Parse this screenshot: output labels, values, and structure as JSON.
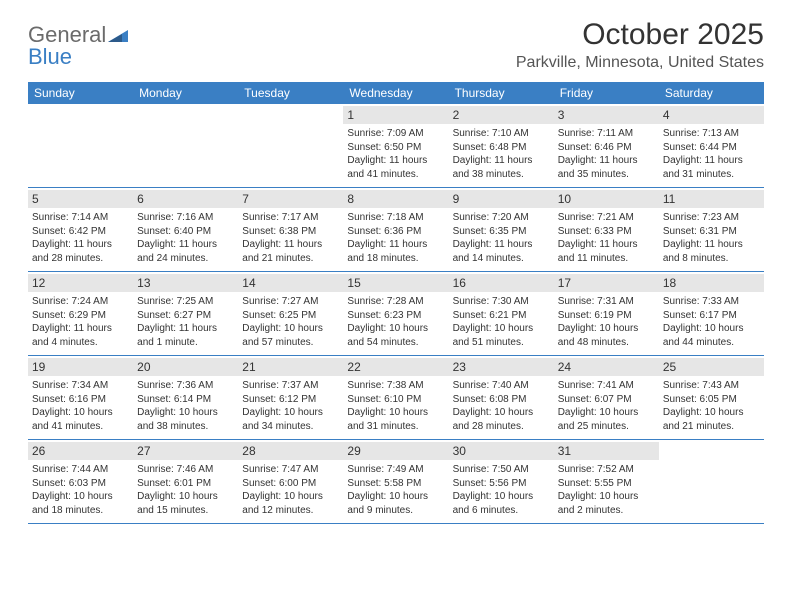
{
  "logo": {
    "line1": "General",
    "line2": "Blue",
    "shape_color": "#3a7fc4",
    "text_color": "#6b6b6b"
  },
  "title": "October 2025",
  "location": "Parkville, Minnesota, United States",
  "colors": {
    "header_bg": "#3a7fc4",
    "daynum_bg": "#e6e6e6",
    "border": "#3a7fc4"
  },
  "dow": [
    "Sunday",
    "Monday",
    "Tuesday",
    "Wednesday",
    "Thursday",
    "Friday",
    "Saturday"
  ],
  "weeks": [
    [
      {
        "n": "",
        "empty": true
      },
      {
        "n": "",
        "empty": true
      },
      {
        "n": "",
        "empty": true
      },
      {
        "n": "1",
        "sr": "7:09 AM",
        "ss": "6:50 PM",
        "dl": "11 hours and 41 minutes."
      },
      {
        "n": "2",
        "sr": "7:10 AM",
        "ss": "6:48 PM",
        "dl": "11 hours and 38 minutes."
      },
      {
        "n": "3",
        "sr": "7:11 AM",
        "ss": "6:46 PM",
        "dl": "11 hours and 35 minutes."
      },
      {
        "n": "4",
        "sr": "7:13 AM",
        "ss": "6:44 PM",
        "dl": "11 hours and 31 minutes."
      }
    ],
    [
      {
        "n": "5",
        "sr": "7:14 AM",
        "ss": "6:42 PM",
        "dl": "11 hours and 28 minutes."
      },
      {
        "n": "6",
        "sr": "7:16 AM",
        "ss": "6:40 PM",
        "dl": "11 hours and 24 minutes."
      },
      {
        "n": "7",
        "sr": "7:17 AM",
        "ss": "6:38 PM",
        "dl": "11 hours and 21 minutes."
      },
      {
        "n": "8",
        "sr": "7:18 AM",
        "ss": "6:36 PM",
        "dl": "11 hours and 18 minutes."
      },
      {
        "n": "9",
        "sr": "7:20 AM",
        "ss": "6:35 PM",
        "dl": "11 hours and 14 minutes."
      },
      {
        "n": "10",
        "sr": "7:21 AM",
        "ss": "6:33 PM",
        "dl": "11 hours and 11 minutes."
      },
      {
        "n": "11",
        "sr": "7:23 AM",
        "ss": "6:31 PM",
        "dl": "11 hours and 8 minutes."
      }
    ],
    [
      {
        "n": "12",
        "sr": "7:24 AM",
        "ss": "6:29 PM",
        "dl": "11 hours and 4 minutes."
      },
      {
        "n": "13",
        "sr": "7:25 AM",
        "ss": "6:27 PM",
        "dl": "11 hours and 1 minute."
      },
      {
        "n": "14",
        "sr": "7:27 AM",
        "ss": "6:25 PM",
        "dl": "10 hours and 57 minutes."
      },
      {
        "n": "15",
        "sr": "7:28 AM",
        "ss": "6:23 PM",
        "dl": "10 hours and 54 minutes."
      },
      {
        "n": "16",
        "sr": "7:30 AM",
        "ss": "6:21 PM",
        "dl": "10 hours and 51 minutes."
      },
      {
        "n": "17",
        "sr": "7:31 AM",
        "ss": "6:19 PM",
        "dl": "10 hours and 48 minutes."
      },
      {
        "n": "18",
        "sr": "7:33 AM",
        "ss": "6:17 PM",
        "dl": "10 hours and 44 minutes."
      }
    ],
    [
      {
        "n": "19",
        "sr": "7:34 AM",
        "ss": "6:16 PM",
        "dl": "10 hours and 41 minutes."
      },
      {
        "n": "20",
        "sr": "7:36 AM",
        "ss": "6:14 PM",
        "dl": "10 hours and 38 minutes."
      },
      {
        "n": "21",
        "sr": "7:37 AM",
        "ss": "6:12 PM",
        "dl": "10 hours and 34 minutes."
      },
      {
        "n": "22",
        "sr": "7:38 AM",
        "ss": "6:10 PM",
        "dl": "10 hours and 31 minutes."
      },
      {
        "n": "23",
        "sr": "7:40 AM",
        "ss": "6:08 PM",
        "dl": "10 hours and 28 minutes."
      },
      {
        "n": "24",
        "sr": "7:41 AM",
        "ss": "6:07 PM",
        "dl": "10 hours and 25 minutes."
      },
      {
        "n": "25",
        "sr": "7:43 AM",
        "ss": "6:05 PM",
        "dl": "10 hours and 21 minutes."
      }
    ],
    [
      {
        "n": "26",
        "sr": "7:44 AM",
        "ss": "6:03 PM",
        "dl": "10 hours and 18 minutes."
      },
      {
        "n": "27",
        "sr": "7:46 AM",
        "ss": "6:01 PM",
        "dl": "10 hours and 15 minutes."
      },
      {
        "n": "28",
        "sr": "7:47 AM",
        "ss": "6:00 PM",
        "dl": "10 hours and 12 minutes."
      },
      {
        "n": "29",
        "sr": "7:49 AM",
        "ss": "5:58 PM",
        "dl": "10 hours and 9 minutes."
      },
      {
        "n": "30",
        "sr": "7:50 AM",
        "ss": "5:56 PM",
        "dl": "10 hours and 6 minutes."
      },
      {
        "n": "31",
        "sr": "7:52 AM",
        "ss": "5:55 PM",
        "dl": "10 hours and 2 minutes."
      },
      {
        "n": "",
        "empty": true
      }
    ]
  ],
  "labels": {
    "sunrise": "Sunrise:",
    "sunset": "Sunset:",
    "daylight": "Daylight:"
  }
}
